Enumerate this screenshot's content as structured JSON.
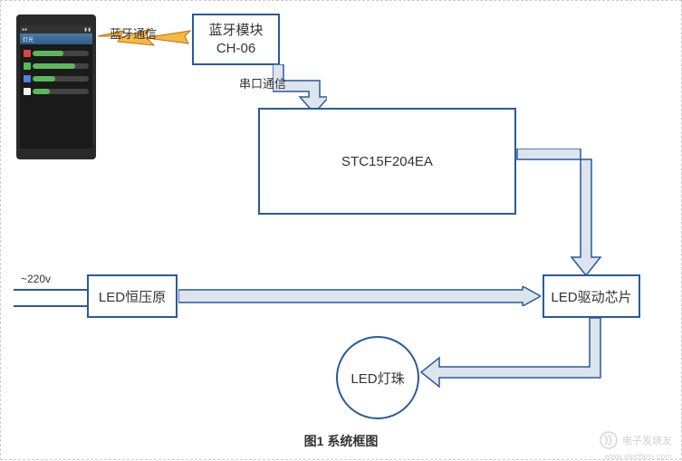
{
  "diagram": {
    "caption": "图1  系统框图",
    "colors": {
      "block_border": "#2a5a9a",
      "arrow_fill": "#dce5ee",
      "arrow_border": "#2a5a9a",
      "background": "#ffffff",
      "text": "#333333",
      "bt_bolt": "#f0a020"
    },
    "blocks": {
      "bluetooth": {
        "line1": "蓝牙模块",
        "line2": "CH-06"
      },
      "mcu": "STC15F204EA",
      "led_voltage": "LED恒压原",
      "led_driver": "LED驱动芯片",
      "led_bead": "LED灯珠"
    },
    "labels": {
      "bt_comm": "蓝牙通信",
      "serial_comm": "串口通信",
      "voltage_in": "~220v"
    },
    "phone": {
      "status_left": "●●",
      "status_right": "▮ ▮",
      "header_text": "灯光",
      "sliders": [
        {
          "label_color": "#e04040",
          "fill_color": "#5cb85c",
          "fill_pct": 55
        },
        {
          "label_color": "#50c050",
          "fill_color": "#5cb85c",
          "fill_pct": 75
        },
        {
          "label_color": "#5080e0",
          "fill_color": "#5cb85c",
          "fill_pct": 40
        },
        {
          "label_color": "#f0f0f0",
          "fill_color": "#5cb85c",
          "fill_pct": 30
        }
      ]
    },
    "watermark": {
      "text": "电子发烧友",
      "url": "www.elecfans.com"
    }
  }
}
